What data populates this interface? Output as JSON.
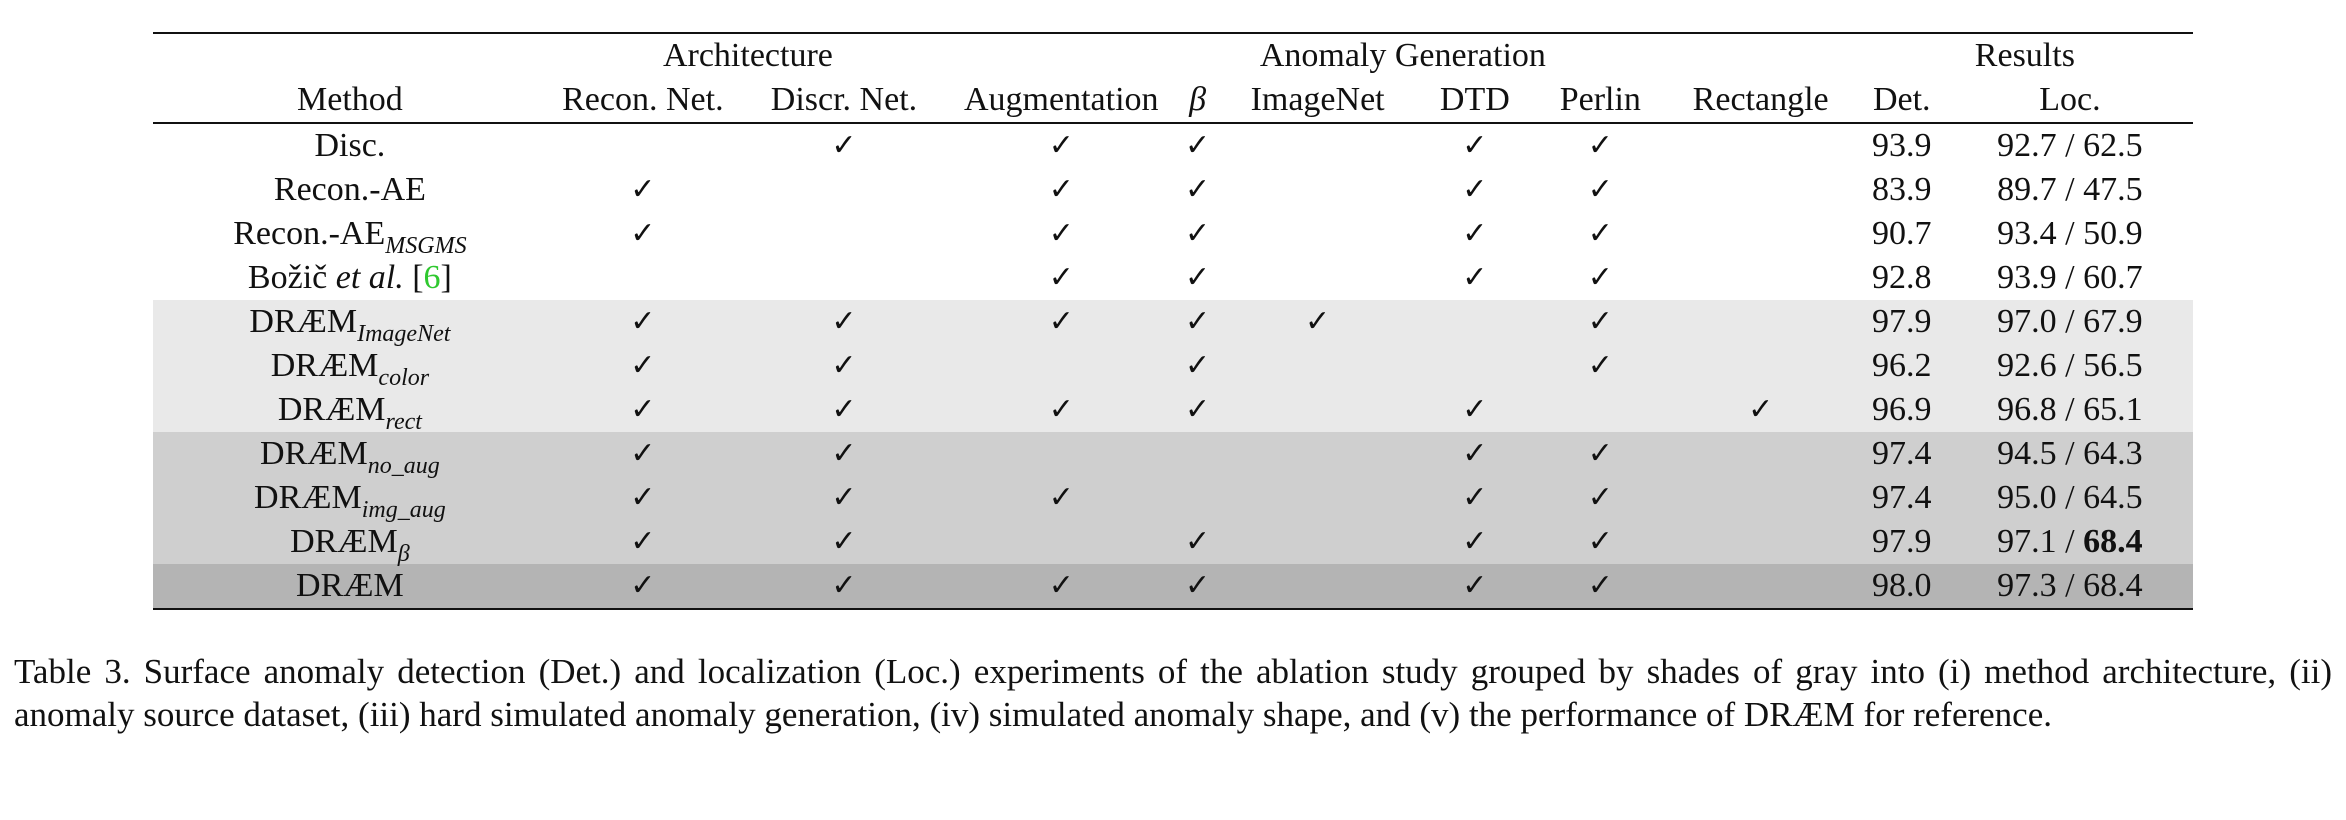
{
  "table": {
    "group_headers": {
      "architecture": "Architecture",
      "anomaly_generation": "Anomaly Generation",
      "results": "Results"
    },
    "columns": {
      "method": "Method",
      "recon_net": "Recon. Net.",
      "discr_net": "Discr. Net.",
      "augmentation": "Augmentation",
      "beta": "β",
      "imagenet": "ImageNet",
      "dtd": "DTD",
      "perlin": "Perlin",
      "rectangle": "Rectangle",
      "det": "Det.",
      "loc": "Loc."
    },
    "check_symbol": "✓",
    "rows": [
      {
        "method": "Disc.",
        "method_sub": "",
        "method_italic": "",
        "cite": "",
        "group": 0,
        "recon": "",
        "discr": "✓",
        "aug": "✓",
        "beta": "✓",
        "imagenet": "",
        "dtd": "✓",
        "perlin": "✓",
        "rect": "",
        "det": "93.9",
        "loc": "92.7 / 62.5",
        "det_bold": false,
        "loc_bold": false
      },
      {
        "method": "Recon.-AE",
        "method_sub": "",
        "method_italic": "",
        "cite": "",
        "group": 0,
        "recon": "✓",
        "discr": "",
        "aug": "✓",
        "beta": "✓",
        "imagenet": "",
        "dtd": "✓",
        "perlin": "✓",
        "rect": "",
        "det": "83.9",
        "loc": "89.7 / 47.5",
        "det_bold": false,
        "loc_bold": false
      },
      {
        "method": "Recon.-AE",
        "method_sub": "MSGMS",
        "method_italic": "",
        "cite": "",
        "group": 0,
        "recon": "✓",
        "discr": "",
        "aug": "✓",
        "beta": "✓",
        "imagenet": "",
        "dtd": "✓",
        "perlin": "✓",
        "rect": "",
        "det": "90.7",
        "loc": "93.4 / 50.9",
        "det_bold": false,
        "loc_bold": false
      },
      {
        "method": "Božič ",
        "method_sub": "",
        "method_italic": "et al.",
        "cite": "6",
        "group": 0,
        "recon": "",
        "discr": "",
        "aug": "✓",
        "beta": "✓",
        "imagenet": "",
        "dtd": "✓",
        "perlin": "✓",
        "rect": "",
        "det": "92.8",
        "loc": "93.9 / 60.7",
        "det_bold": false,
        "loc_bold": false
      },
      {
        "method": "DRÆM",
        "method_sub": "ImageNet",
        "method_italic": "",
        "cite": "",
        "group": 1,
        "recon": "✓",
        "discr": "✓",
        "aug": "✓",
        "beta": "✓",
        "imagenet": "✓",
        "dtd": "",
        "perlin": "✓",
        "rect": "",
        "det": "97.9",
        "loc": "97.0 / 67.9",
        "det_bold": false,
        "loc_bold": false
      },
      {
        "method": "DRÆM",
        "method_sub": "color",
        "method_italic": "",
        "cite": "",
        "group": 1,
        "recon": "✓",
        "discr": "✓",
        "aug": "",
        "beta": "✓",
        "imagenet": "",
        "dtd": "",
        "perlin": "✓",
        "rect": "",
        "det": "96.2",
        "loc": "92.6 / 56.5",
        "det_bold": false,
        "loc_bold": false
      },
      {
        "method": "DRÆM",
        "method_sub": "rect",
        "method_italic": "",
        "cite": "",
        "group": 1,
        "recon": "✓",
        "discr": "✓",
        "aug": "✓",
        "beta": "✓",
        "imagenet": "",
        "dtd": "✓",
        "perlin": "",
        "rect": "✓",
        "det": "96.9",
        "loc": "96.8 / 65.1",
        "det_bold": false,
        "loc_bold": false
      },
      {
        "method": "DRÆM",
        "method_sub": "no_aug",
        "method_italic": "",
        "cite": "",
        "group": 2,
        "recon": "✓",
        "discr": "✓",
        "aug": "",
        "beta": "",
        "imagenet": "",
        "dtd": "✓",
        "perlin": "✓",
        "rect": "",
        "det": "97.4",
        "loc": "94.5 / 64.3",
        "det_bold": false,
        "loc_bold": false
      },
      {
        "method": "DRÆM",
        "method_sub": "img_aug",
        "method_italic": "",
        "cite": "",
        "group": 2,
        "recon": "✓",
        "discr": "✓",
        "aug": "✓",
        "beta": "",
        "imagenet": "",
        "dtd": "✓",
        "perlin": "✓",
        "rect": "",
        "det": "97.4",
        "loc": "95.0 / 64.5",
        "det_bold": false,
        "loc_bold": false
      },
      {
        "method": "DRÆM",
        "method_sub": "β",
        "method_italic": "",
        "cite": "",
        "group": 2,
        "recon": "✓",
        "discr": "✓",
        "aug": "",
        "beta": "✓",
        "imagenet": "",
        "dtd": "✓",
        "perlin": "✓",
        "rect": "",
        "det": "97.9",
        "loc_plain": "97.1 / ",
        "loc_boldpart": "68.4",
        "det_bold": false,
        "loc_bold": false
      },
      {
        "method": "DRÆM",
        "method_sub": "",
        "method_italic": "",
        "cite": "",
        "group": 3,
        "recon": "✓",
        "discr": "✓",
        "aug": "✓",
        "beta": "✓",
        "imagenet": "",
        "dtd": "✓",
        "perlin": "✓",
        "rect": "",
        "det": "98.0",
        "loc": "97.3 / 68.4",
        "det_bold": true,
        "loc_bold": true
      }
    ]
  },
  "caption": "Table 3. Surface anomaly detection (Det.)  and localization (Loc.)  experiments of the ablation study grouped by shades of gray into (i) method architecture, (ii) anomaly source dataset, (iii) hard simulated anomaly generation, (iv) simulated anomaly shape, and (v) the performance of DRÆM for reference."
}
